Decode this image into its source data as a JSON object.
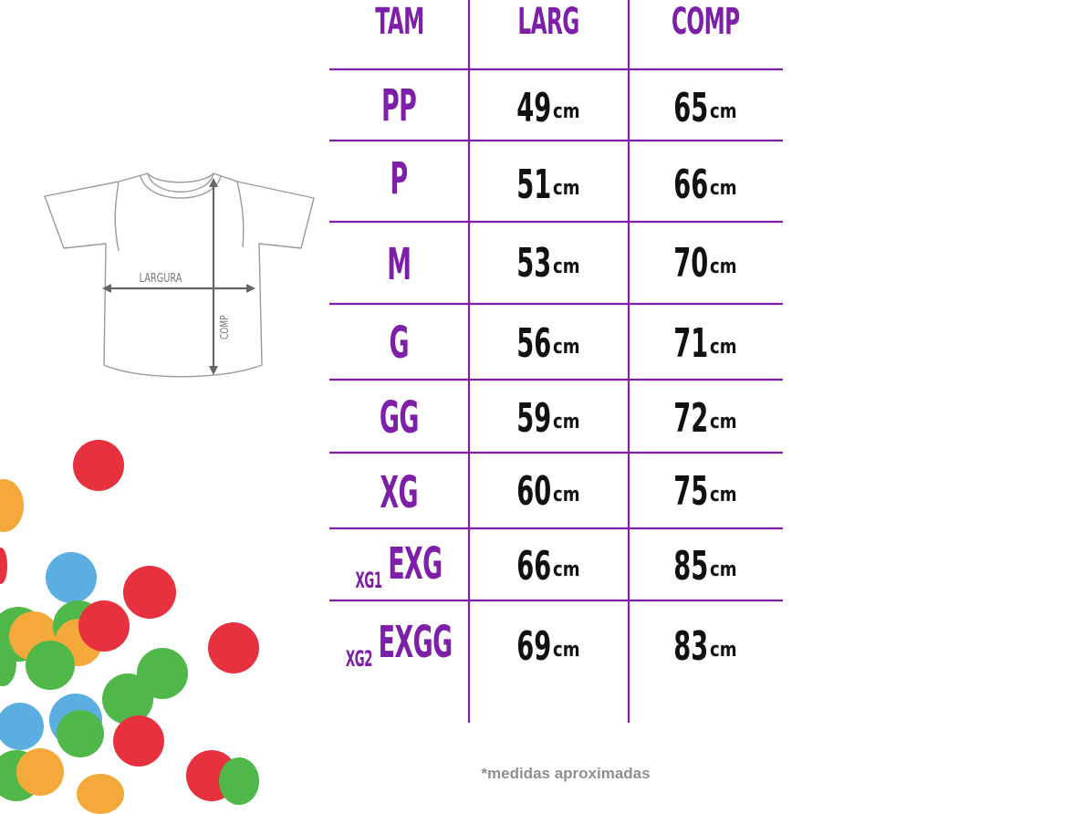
{
  "table": {
    "headers": {
      "size": "TAM",
      "width": "LARG",
      "length": "COMP"
    },
    "unit": "cm",
    "rows": [
      {
        "size": "PP",
        "alt": "",
        "width": "49",
        "length": "65"
      },
      {
        "size": "P",
        "alt": "",
        "width": "51",
        "length": "66"
      },
      {
        "size": "M",
        "alt": "",
        "width": "53",
        "length": "70"
      },
      {
        "size": "G",
        "alt": "",
        "width": "56",
        "length": "71"
      },
      {
        "size": "GG",
        "alt": "",
        "width": "59",
        "length": "72"
      },
      {
        "size": "XG",
        "alt": "",
        "width": "60",
        "length": "75"
      },
      {
        "size": "EXG",
        "alt": "XG1",
        "width": "66",
        "length": "85"
      },
      {
        "size": "EXGG",
        "alt": "XG2",
        "width": "69",
        "length": "83"
      }
    ]
  },
  "diagram": {
    "width_label": "LARGURA",
    "length_label": "COMP"
  },
  "footnote": "*medidas aproximadas",
  "colors": {
    "accent": "#7d1fa8",
    "text": "#111111",
    "note": "#8f8f8f"
  }
}
